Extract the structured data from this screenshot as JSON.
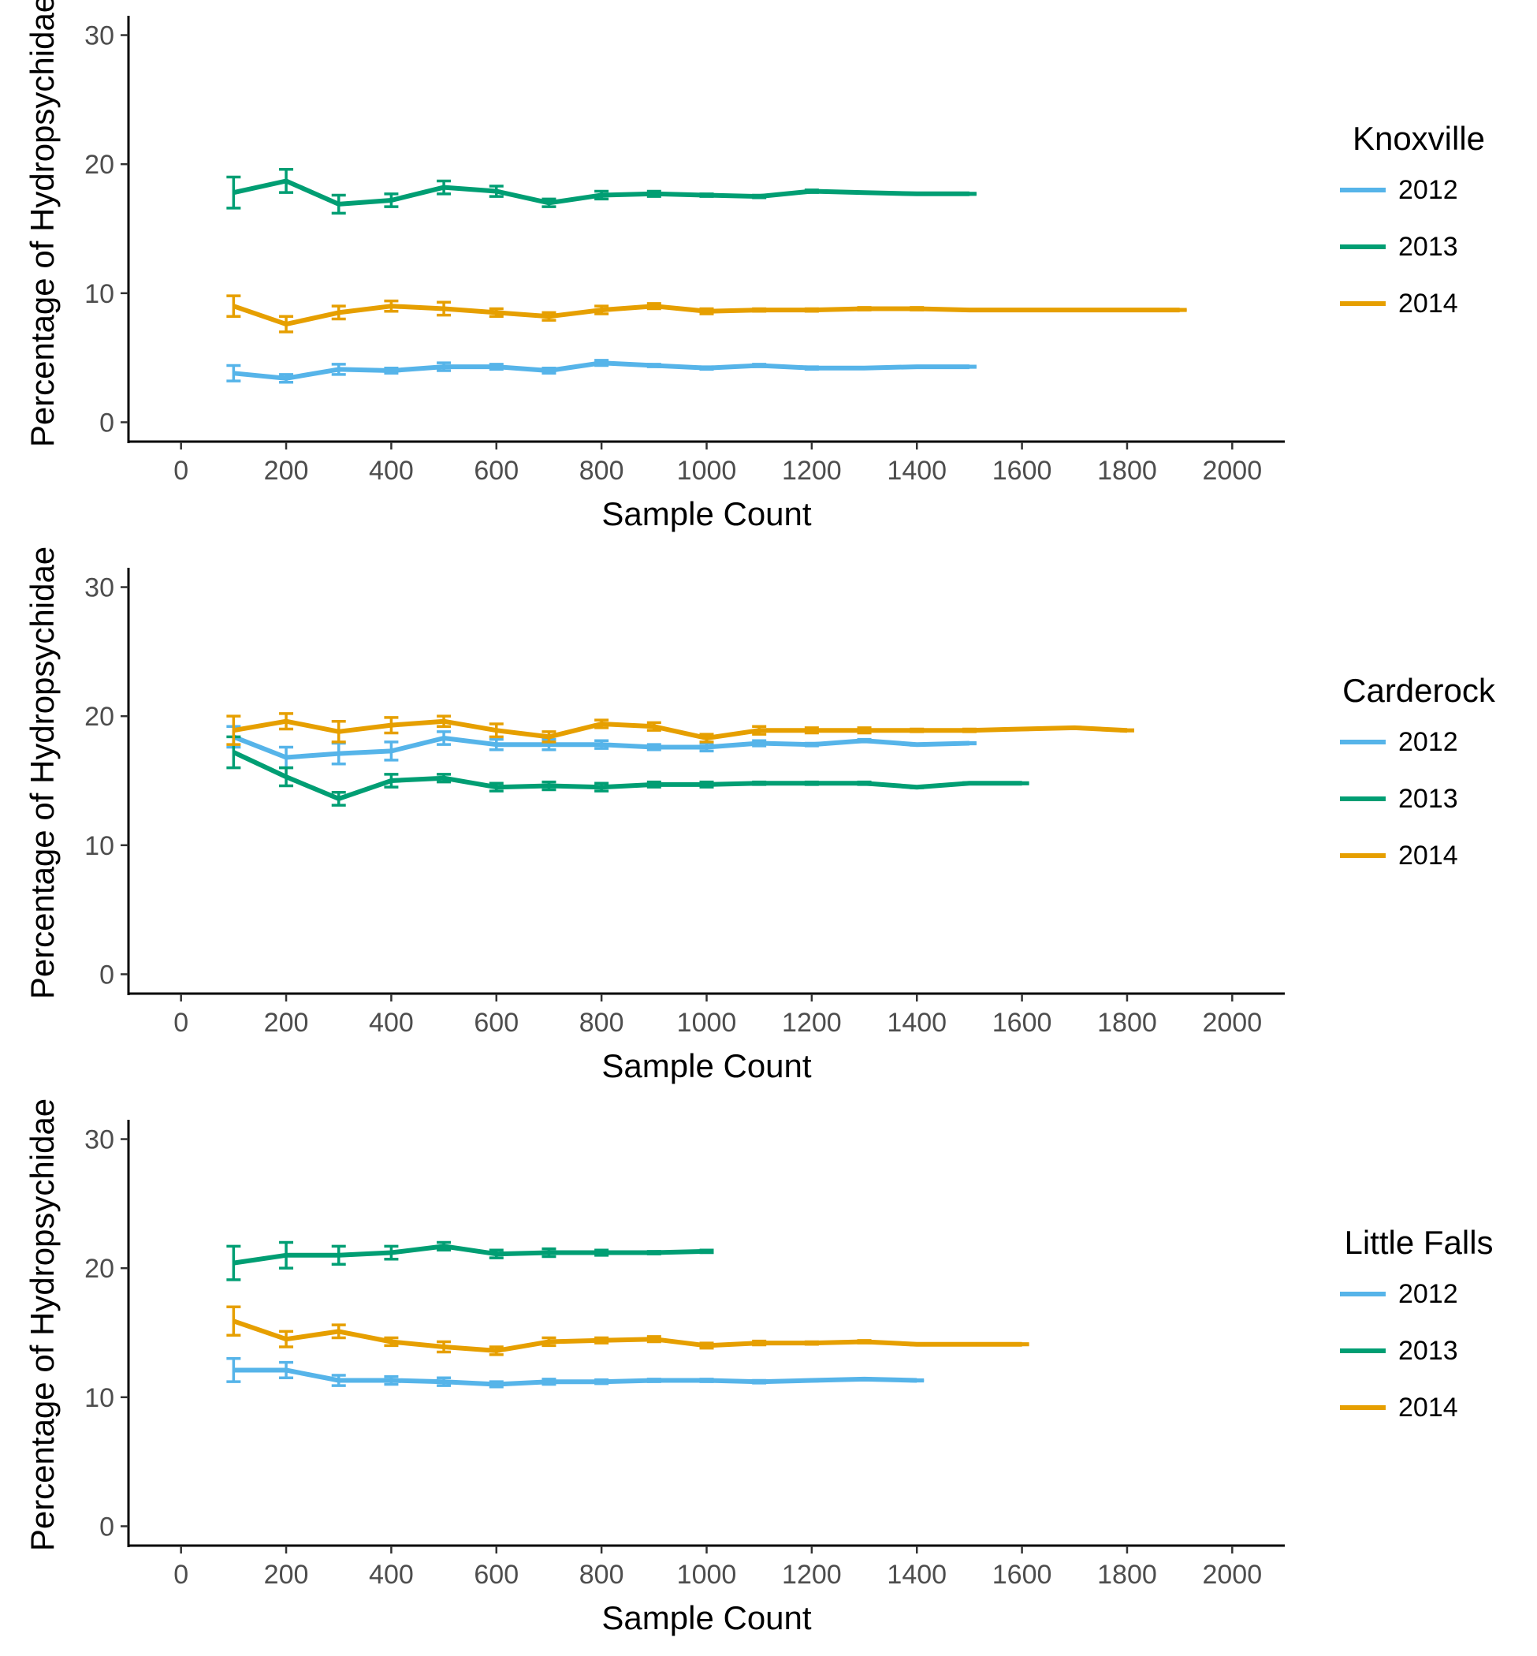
{
  "colors": {
    "2012": "#56B4E9",
    "2013": "#009E73",
    "2014": "#E69F00"
  },
  "chart_data": [
    {
      "type": "line",
      "legend_title": "Knoxville",
      "xlabel": "Sample Count",
      "ylabel": "Percentage of Hydropsychidae",
      "xlim": [
        -100,
        2100
      ],
      "ylim": [
        -1.5,
        31.5
      ],
      "x_ticks": [
        0,
        200,
        400,
        600,
        800,
        1000,
        1200,
        1400,
        1600,
        1800,
        2000
      ],
      "y_ticks": [
        0,
        10,
        20,
        30
      ],
      "legend_placement": "right",
      "grid": false,
      "series": [
        {
          "name": "2012",
          "x": [
            100,
            200,
            300,
            400,
            500,
            600,
            700,
            800,
            900,
            1000,
            1100,
            1200,
            1300,
            1400,
            1500
          ],
          "y": [
            3.8,
            3.4,
            4.1,
            4.0,
            4.3,
            4.3,
            4.0,
            4.6,
            4.4,
            4.2,
            4.4,
            4.2,
            4.2,
            4.3,
            4.3
          ],
          "err": [
            0.6,
            0.3,
            0.4,
            0.2,
            0.3,
            0.2,
            0.2,
            0.2,
            0.1,
            0.1,
            0.1,
            0.1,
            0.05,
            0.05,
            0.05
          ]
        },
        {
          "name": "2013",
          "x": [
            100,
            200,
            300,
            400,
            500,
            600,
            700,
            800,
            900,
            1000,
            1100,
            1200,
            1300,
            1400,
            1500
          ],
          "y": [
            17.8,
            18.7,
            16.9,
            17.2,
            18.2,
            17.9,
            17.0,
            17.6,
            17.7,
            17.6,
            17.5,
            17.9,
            17.8,
            17.7,
            17.7
          ],
          "err": [
            1.2,
            0.9,
            0.7,
            0.5,
            0.5,
            0.4,
            0.3,
            0.3,
            0.2,
            0.1,
            0.1,
            0.1,
            0.05,
            0.05,
            0.05
          ]
        },
        {
          "name": "2014",
          "x": [
            100,
            200,
            300,
            400,
            500,
            600,
            700,
            800,
            900,
            1000,
            1100,
            1200,
            1300,
            1400,
            1500,
            1600,
            1700,
            1800,
            1900
          ],
          "y": [
            9.0,
            7.6,
            8.5,
            9.0,
            8.8,
            8.5,
            8.2,
            8.7,
            9.0,
            8.6,
            8.7,
            8.7,
            8.8,
            8.8,
            8.7,
            8.7,
            8.7,
            8.7,
            8.7
          ],
          "err": [
            0.8,
            0.6,
            0.5,
            0.4,
            0.5,
            0.3,
            0.3,
            0.3,
            0.2,
            0.2,
            0.1,
            0.1,
            0.1,
            0.1,
            0.05,
            0.05,
            0.05,
            0.05,
            0.05
          ]
        }
      ]
    },
    {
      "type": "line",
      "legend_title": "Carderock",
      "xlabel": "Sample Count",
      "ylabel": "Percentage of Hydropsychidae",
      "xlim": [
        -100,
        2100
      ],
      "ylim": [
        -1.5,
        31.5
      ],
      "x_ticks": [
        0,
        200,
        400,
        600,
        800,
        1000,
        1200,
        1400,
        1600,
        1800,
        2000
      ],
      "y_ticks": [
        0,
        10,
        20,
        30
      ],
      "legend_placement": "right",
      "grid": false,
      "series": [
        {
          "name": "2012",
          "x": [
            100,
            200,
            300,
            400,
            500,
            600,
            700,
            800,
            900,
            1000,
            1100,
            1200,
            1300,
            1400,
            1500
          ],
          "y": [
            18.4,
            16.8,
            17.1,
            17.3,
            18.3,
            17.8,
            17.8,
            17.8,
            17.6,
            17.6,
            17.9,
            17.8,
            18.1,
            17.8,
            17.9
          ],
          "err": [
            0.8,
            0.8,
            0.8,
            0.7,
            0.5,
            0.4,
            0.4,
            0.3,
            0.2,
            0.3,
            0.2,
            0.1,
            0.1,
            0.05,
            0.05
          ]
        },
        {
          "name": "2013",
          "x": [
            100,
            200,
            300,
            400,
            500,
            600,
            700,
            800,
            900,
            1000,
            1100,
            1200,
            1300,
            1400,
            1500,
            1600
          ],
          "y": [
            17.2,
            15.3,
            13.6,
            15.0,
            15.2,
            14.5,
            14.6,
            14.5,
            14.7,
            14.7,
            14.8,
            14.8,
            14.8,
            14.5,
            14.8,
            14.8
          ],
          "err": [
            1.2,
            0.7,
            0.5,
            0.5,
            0.3,
            0.3,
            0.3,
            0.3,
            0.2,
            0.2,
            0.1,
            0.1,
            0.1,
            0.05,
            0.05,
            0.05
          ]
        },
        {
          "name": "2014",
          "x": [
            100,
            200,
            300,
            400,
            500,
            600,
            700,
            800,
            900,
            1000,
            1100,
            1200,
            1300,
            1400,
            1500,
            1600,
            1700,
            1800
          ],
          "y": [
            18.9,
            19.6,
            18.8,
            19.3,
            19.6,
            18.9,
            18.4,
            19.4,
            19.2,
            18.3,
            18.9,
            18.9,
            18.9,
            18.9,
            18.9,
            19.0,
            19.1,
            18.9
          ],
          "err": [
            1.1,
            0.6,
            0.8,
            0.6,
            0.4,
            0.5,
            0.4,
            0.3,
            0.3,
            0.3,
            0.3,
            0.2,
            0.2,
            0.1,
            0.1,
            0.05,
            0.05,
            0.05
          ]
        }
      ]
    },
    {
      "type": "line",
      "legend_title": "Little Falls",
      "xlabel": "Sample Count",
      "ylabel": "Percentage of Hydropsychidae",
      "xlim": [
        -100,
        2100
      ],
      "ylim": [
        -1.5,
        31.5
      ],
      "x_ticks": [
        0,
        200,
        400,
        600,
        800,
        1000,
        1200,
        1400,
        1600,
        1800,
        2000
      ],
      "y_ticks": [
        0,
        10,
        20,
        30
      ],
      "legend_placement": "right",
      "grid": false,
      "series": [
        {
          "name": "2012",
          "x": [
            100,
            200,
            300,
            400,
            500,
            600,
            700,
            800,
            900,
            1000,
            1100,
            1200,
            1300,
            1400
          ],
          "y": [
            12.1,
            12.1,
            11.3,
            11.3,
            11.2,
            11.0,
            11.2,
            11.2,
            11.3,
            11.3,
            11.2,
            11.3,
            11.4,
            11.3
          ],
          "err": [
            0.9,
            0.6,
            0.4,
            0.3,
            0.3,
            0.2,
            0.2,
            0.15,
            0.1,
            0.1,
            0.1,
            0.05,
            0.05,
            0.05
          ]
        },
        {
          "name": "2013",
          "x": [
            100,
            200,
            300,
            400,
            500,
            600,
            700,
            800,
            900,
            1000
          ],
          "y": [
            20.4,
            21.0,
            21.0,
            21.2,
            21.7,
            21.1,
            21.2,
            21.2,
            21.2,
            21.3
          ],
          "err": [
            1.3,
            1.0,
            0.7,
            0.5,
            0.3,
            0.3,
            0.3,
            0.2,
            0.1,
            0.1
          ]
        },
        {
          "name": "2014",
          "x": [
            100,
            200,
            300,
            400,
            500,
            600,
            700,
            800,
            900,
            1000,
            1100,
            1200,
            1300,
            1400,
            1500,
            1600
          ],
          "y": [
            15.9,
            14.5,
            15.1,
            14.3,
            13.9,
            13.6,
            14.3,
            14.4,
            14.5,
            14.0,
            14.2,
            14.2,
            14.3,
            14.1,
            14.1,
            14.1
          ],
          "err": [
            1.1,
            0.6,
            0.5,
            0.3,
            0.4,
            0.3,
            0.3,
            0.2,
            0.2,
            0.2,
            0.15,
            0.1,
            0.1,
            0.05,
            0.05,
            0.05
          ]
        }
      ]
    }
  ]
}
